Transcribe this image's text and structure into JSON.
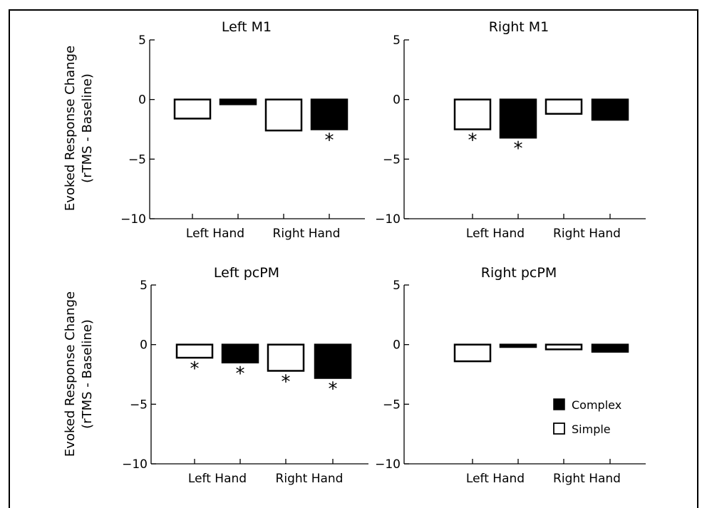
{
  "figure": {
    "ylabel_line1": "Evoked Response Change",
    "ylabel_line2": "(rTMS - Baseline)",
    "legend": [
      {
        "label": "Complex",
        "fill": "#000000"
      },
      {
        "label": "Simple",
        "fill": "#ffffff"
      }
    ],
    "significance_marker": "*"
  },
  "chart_data": [
    {
      "type": "bar",
      "title": "Left M1",
      "categories": [
        "Left Hand",
        "Right Hand"
      ],
      "ylim": [
        -10,
        5
      ],
      "yticks": [
        5,
        0,
        -5,
        -10
      ],
      "series": [
        {
          "name": "Simple",
          "values": [
            -1.6,
            -2.6
          ],
          "significant": [
            false,
            false
          ]
        },
        {
          "name": "Complex",
          "values": [
            -0.4,
            -2.5
          ],
          "significant": [
            false,
            true
          ]
        }
      ]
    },
    {
      "type": "bar",
      "title": "Right M1",
      "categories": [
        "Left Hand",
        "Right Hand"
      ],
      "ylim": [
        -10,
        5
      ],
      "yticks": [
        5,
        0,
        -5,
        -10
      ],
      "series": [
        {
          "name": "Simple",
          "values": [
            -2.5,
            -1.2
          ],
          "significant": [
            true,
            false
          ]
        },
        {
          "name": "Complex",
          "values": [
            -3.2,
            -1.7
          ],
          "significant": [
            true,
            false
          ]
        }
      ]
    },
    {
      "type": "bar",
      "title": "Left pcPM",
      "categories": [
        "Left Hand",
        "Right Hand"
      ],
      "ylim": [
        -10,
        5
      ],
      "yticks": [
        5,
        0,
        -5,
        -10
      ],
      "series": [
        {
          "name": "Simple",
          "values": [
            -1.1,
            -2.2
          ],
          "significant": [
            true,
            true
          ]
        },
        {
          "name": "Complex",
          "values": [
            -1.5,
            -2.8
          ],
          "significant": [
            true,
            true
          ]
        }
      ]
    },
    {
      "type": "bar",
      "title": "Right pcPM",
      "categories": [
        "Left Hand",
        "Right Hand"
      ],
      "ylim": [
        -10,
        5
      ],
      "yticks": [
        5,
        0,
        -5,
        -10
      ],
      "series": [
        {
          "name": "Simple",
          "values": [
            -1.4,
            -0.4
          ],
          "significant": [
            false,
            false
          ]
        },
        {
          "name": "Complex",
          "values": [
            -0.2,
            -0.6
          ],
          "significant": [
            false,
            false
          ]
        }
      ]
    }
  ]
}
